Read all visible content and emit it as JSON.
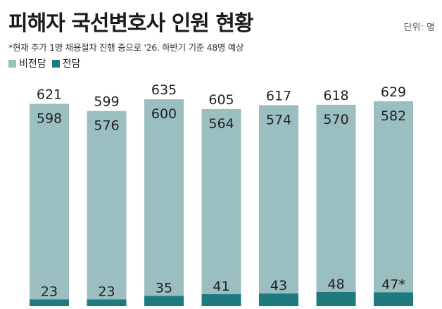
{
  "title": "피해자 국선변호사 인원 현황",
  "unit_label": "단위: 명",
  "note": "*현재 추가 1명 채용절차 진행 중으로 '26. 하반기 기준 48명 예상",
  "colors": {
    "non_dedicated": "#9bbfc0",
    "dedicated": "#1f7a80",
    "text": "#222222"
  },
  "chart_data": {
    "type": "bar",
    "stacked": true,
    "series": [
      {
        "name": "비전담",
        "values": [
          598,
          576,
          600,
          564,
          574,
          570,
          582
        ]
      },
      {
        "name": "전담",
        "values": [
          23,
          23,
          35,
          41,
          43,
          48,
          47
        ]
      }
    ],
    "totals": [
      621,
      599,
      635,
      605,
      617,
      618,
      629
    ],
    "dedicated_labels": [
      "23",
      "23",
      "35",
      "41",
      "43",
      "48",
      "47*"
    ],
    "title": "피해자 국선변호사 인원 현황",
    "xlabel": "",
    "ylabel": "",
    "ylim": [
      0,
      635
    ],
    "grid": false,
    "legend_position": "top-left"
  }
}
